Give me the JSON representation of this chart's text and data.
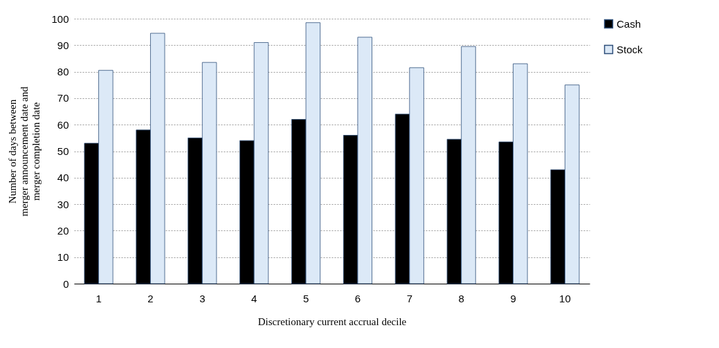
{
  "chart_data": {
    "type": "bar",
    "xlabel": "Discretionary current accrual decile",
    "ylabel": "Number of days between\nmerger announcement date and\nmerger completion date",
    "categories": [
      "1",
      "2",
      "3",
      "4",
      "5",
      "6",
      "7",
      "8",
      "9",
      "10"
    ],
    "series": [
      {
        "name": "Cash",
        "color": "#000000",
        "values": [
          53,
          58,
          55,
          54,
          62,
          56,
          64,
          54.5,
          53.5,
          43
        ]
      },
      {
        "name": "Stock",
        "color": "#dce9f7",
        "values": [
          80.5,
          94.5,
          83.5,
          91,
          98.5,
          93,
          81.5,
          89.5,
          83,
          75
        ]
      }
    ],
    "ylim": [
      0,
      100
    ],
    "yticks": [
      0,
      10,
      20,
      30,
      40,
      50,
      60,
      70,
      80,
      90,
      100
    ],
    "grid": "y",
    "legend": "right"
  }
}
